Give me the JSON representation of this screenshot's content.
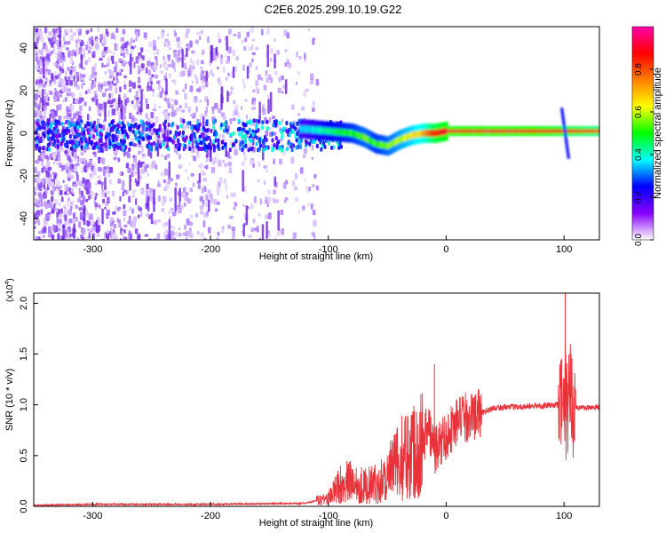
{
  "title": "C2E6.2025.299.10.19.G22",
  "chart_data": [
    {
      "type": "heatmap",
      "xlabel": "Height of straight line (km)",
      "ylabel": "Frequency (Hz)",
      "xlim": [
        -350,
        130
      ],
      "ylim": [
        -50,
        50
      ],
      "xticks": [
        -300,
        -200,
        -100,
        0,
        100
      ],
      "yticks": [
        -40,
        -20,
        0,
        20,
        40
      ],
      "colorbar": {
        "label": "Normalized spectral amplitude",
        "range": [
          0,
          1
        ],
        "ticks": [
          "0.0",
          "0.2",
          "0.4",
          "0.6",
          "0.8"
        ],
        "tick_values": [
          0,
          0.2,
          0.4,
          0.6,
          0.8
        ],
        "colors": [
          "#ffffff",
          "#8800ff",
          "#0000ff",
          "#00ffff",
          "#00ff00",
          "#ffff00",
          "#ff7f00",
          "#ff0000",
          "#ff00aa"
        ]
      },
      "ridge": [
        {
          "x": -120,
          "f": 2,
          "a": 0.35
        },
        {
          "x": -100,
          "f": 1,
          "a": 0.45
        },
        {
          "x": -80,
          "f": 0,
          "a": 0.5
        },
        {
          "x": -70,
          "f": -2,
          "a": 0.55
        },
        {
          "x": -60,
          "f": -5,
          "a": 0.5
        },
        {
          "x": -50,
          "f": -6,
          "a": 0.55
        },
        {
          "x": -40,
          "f": -3,
          "a": 0.6
        },
        {
          "x": -30,
          "f": -1,
          "a": 0.65
        },
        {
          "x": -20,
          "f": 0,
          "a": 0.7
        },
        {
          "x": -10,
          "f": 0,
          "a": 0.85
        },
        {
          "x": 0,
          "f": 1,
          "a": 0.9
        },
        {
          "x": 40,
          "f": 1,
          "a": 0.92
        },
        {
          "x": 80,
          "f": 1,
          "a": 0.9
        },
        {
          "x": 100,
          "f": 1,
          "a": 0.85
        },
        {
          "x": 130,
          "f": 1,
          "a": 0.8
        }
      ]
    },
    {
      "type": "line",
      "xlabel": "Height of straight line (km)",
      "ylabel": "SNR (10 * v/v)",
      "multiplier": "(x10",
      "multiplier_exp": "4",
      "multiplier_close": ")",
      "xlim": [
        -350,
        130
      ],
      "ylim": [
        0,
        2.1
      ],
      "xticks": [
        -300,
        -200,
        -100,
        0,
        100
      ],
      "yticks": [
        "0.0",
        "0.5",
        "1.0",
        "1.5",
        "2.0"
      ],
      "ytick_values": [
        0,
        0.5,
        1.0,
        1.5,
        2.0
      ],
      "color": "#e8333a",
      "x": [
        -350,
        -300,
        -200,
        -120,
        -100,
        -90,
        -80,
        -70,
        -60,
        -50,
        -40,
        -30,
        -20,
        -15,
        -10,
        0,
        10,
        20,
        30,
        40,
        60,
        80,
        95,
        100,
        102,
        105,
        110,
        130
      ],
      "y": [
        0.01,
        0.02,
        0.02,
        0.03,
        0.08,
        0.22,
        0.25,
        0.2,
        0.22,
        0.3,
        0.45,
        0.55,
        0.65,
        0.8,
        0.55,
        0.7,
        0.85,
        0.88,
        0.92,
        0.97,
        0.98,
        0.99,
        1.0,
        1.0,
        0.95,
        1.1,
        0.97,
        0.98
      ],
      "spikes": [
        {
          "x": -10,
          "y": 1.4
        },
        {
          "x": 101,
          "y": 2.1
        },
        {
          "x": 106,
          "y": 1.5
        }
      ]
    }
  ]
}
